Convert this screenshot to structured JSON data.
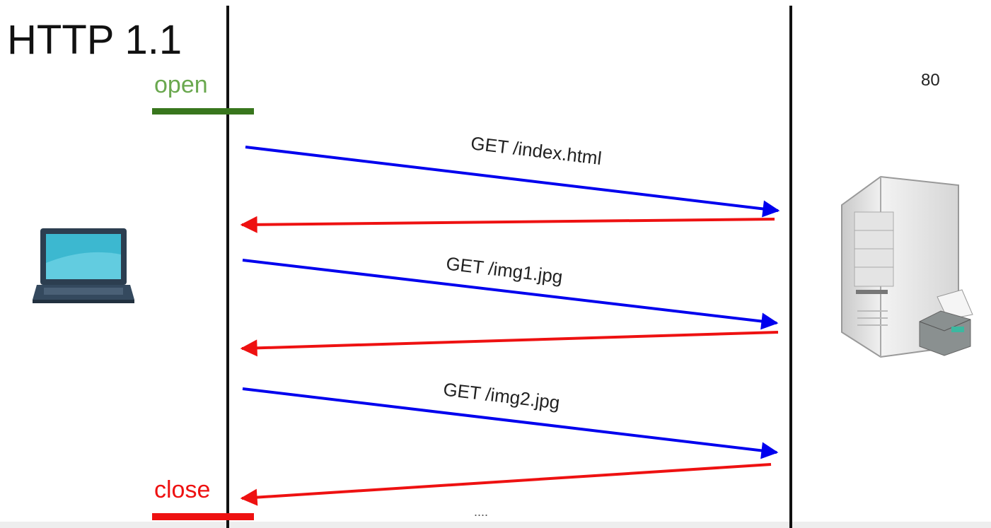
{
  "title": "HTTP 1.1",
  "connection": {
    "open": "open",
    "close": "close"
  },
  "server": {
    "port": "80"
  },
  "messages": [
    {
      "label": "GET /index.html"
    },
    {
      "label": "GET /img1.jpg"
    },
    {
      "label": "GET /img2.jpg"
    }
  ],
  "ellipsis": "...."
}
